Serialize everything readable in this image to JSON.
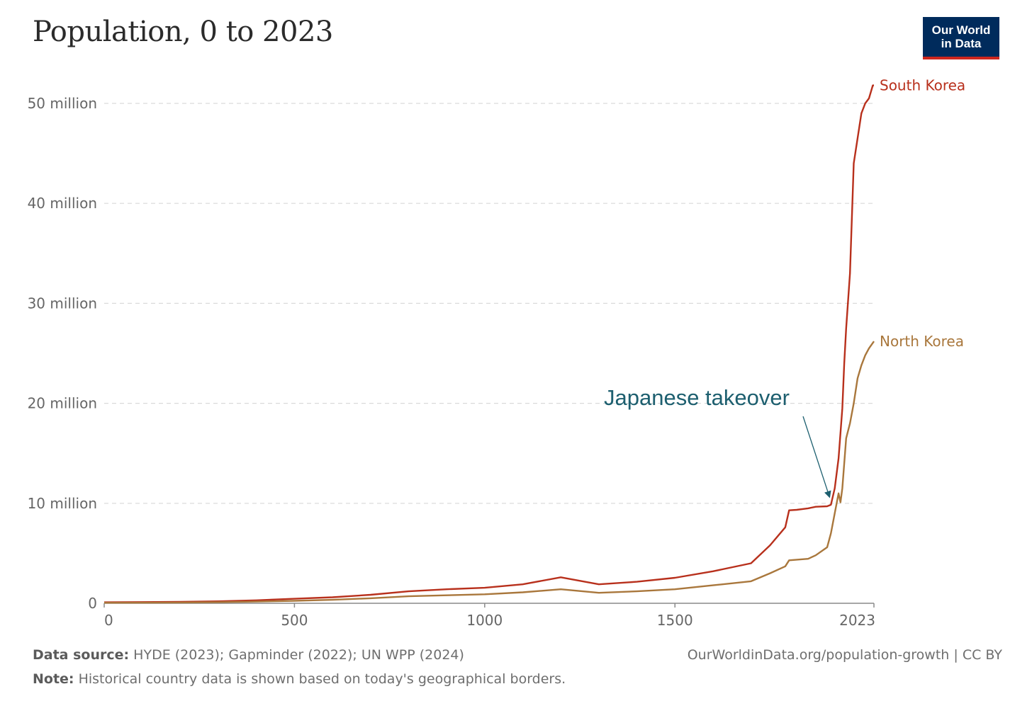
{
  "header": {
    "title": "Population, 0 to 2023",
    "logo_line1": "Our World",
    "logo_line2": "in Data"
  },
  "footer": {
    "source_label": "Data source:",
    "source_text": "HYDE (2023); Gapminder (2022); UN WPP (2024)",
    "note_label": "Note:",
    "note_text": "Historical country data is shown based on today's geographical borders.",
    "url": "OurWorldinData.org/population-growth | CC BY"
  },
  "colors": {
    "south_korea": "#b8301c",
    "north_korea": "#a9773c",
    "annotation": "#1d5f6f",
    "grid": "#d9d9d9",
    "axis_text": "#666666"
  },
  "chart_data": {
    "type": "line",
    "x_ticks": [
      {
        "value": 0,
        "label": "0"
      },
      {
        "value": 500,
        "label": "500"
      },
      {
        "value": 1000,
        "label": "1000"
      },
      {
        "value": 1500,
        "label": "1500"
      },
      {
        "value": 2023,
        "label": "2023"
      }
    ],
    "y_ticks": [
      {
        "value": 0,
        "label": "0"
      },
      {
        "value": 10000000,
        "label": "10 million"
      },
      {
        "value": 20000000,
        "label": "20 million"
      },
      {
        "value": 30000000,
        "label": "30 million"
      },
      {
        "value": 40000000,
        "label": "40 million"
      },
      {
        "value": 50000000,
        "label": "50 million"
      }
    ],
    "xlim": [
      0,
      2023
    ],
    "ylim": [
      0,
      52000000
    ],
    "grid": "horizontal dashed",
    "series": [
      {
        "name": "South Korea",
        "color": "#b8301c",
        "points": [
          [
            0,
            100000
          ],
          [
            100,
            120000
          ],
          [
            200,
            150000
          ],
          [
            300,
            200000
          ],
          [
            400,
            300000
          ],
          [
            500,
            450000
          ],
          [
            600,
            600000
          ],
          [
            700,
            850000
          ],
          [
            800,
            1200000
          ],
          [
            900,
            1400000
          ],
          [
            1000,
            1550000
          ],
          [
            1100,
            1900000
          ],
          [
            1200,
            2600000
          ],
          [
            1300,
            1900000
          ],
          [
            1400,
            2150000
          ],
          [
            1500,
            2550000
          ],
          [
            1600,
            3200000
          ],
          [
            1700,
            4000000
          ],
          [
            1750,
            5800000
          ],
          [
            1790,
            7600000
          ],
          [
            1800,
            9300000
          ],
          [
            1820,
            9350000
          ],
          [
            1850,
            9500000
          ],
          [
            1870,
            9650000
          ],
          [
            1900,
            9700000
          ],
          [
            1910,
            9850000
          ],
          [
            1920,
            11500000
          ],
          [
            1930,
            14500000
          ],
          [
            1940,
            19500000
          ],
          [
            1945,
            24000000
          ],
          [
            1950,
            27500000
          ],
          [
            1960,
            33000000
          ],
          [
            1970,
            44000000
          ],
          [
            1980,
            46500000
          ],
          [
            1990,
            49000000
          ],
          [
            2000,
            50000000
          ],
          [
            2010,
            50500000
          ],
          [
            2020,
            51800000
          ],
          [
            2023,
            51800000
          ]
        ]
      },
      {
        "name": "North Korea",
        "color": "#a9773c",
        "points": [
          [
            0,
            50000
          ],
          [
            100,
            60000
          ],
          [
            200,
            80000
          ],
          [
            300,
            110000
          ],
          [
            400,
            170000
          ],
          [
            500,
            250000
          ],
          [
            600,
            350000
          ],
          [
            700,
            500000
          ],
          [
            800,
            700000
          ],
          [
            900,
            800000
          ],
          [
            1000,
            900000
          ],
          [
            1100,
            1100000
          ],
          [
            1200,
            1400000
          ],
          [
            1300,
            1050000
          ],
          [
            1400,
            1200000
          ],
          [
            1500,
            1400000
          ],
          [
            1600,
            1800000
          ],
          [
            1700,
            2200000
          ],
          [
            1750,
            3000000
          ],
          [
            1790,
            3700000
          ],
          [
            1800,
            4300000
          ],
          [
            1850,
            4450000
          ],
          [
            1870,
            4800000
          ],
          [
            1900,
            5600000
          ],
          [
            1910,
            7000000
          ],
          [
            1920,
            9000000
          ],
          [
            1930,
            11000000
          ],
          [
            1935,
            10100000
          ],
          [
            1940,
            11500000
          ],
          [
            1950,
            16500000
          ],
          [
            1960,
            18000000
          ],
          [
            1970,
            20000000
          ],
          [
            1980,
            22500000
          ],
          [
            1990,
            23800000
          ],
          [
            2000,
            24800000
          ],
          [
            2010,
            25500000
          ],
          [
            2023,
            26200000
          ]
        ]
      }
    ],
    "annotations": [
      {
        "text": "Japanese takeover",
        "x": 1910,
        "y": 10000000
      }
    ]
  }
}
